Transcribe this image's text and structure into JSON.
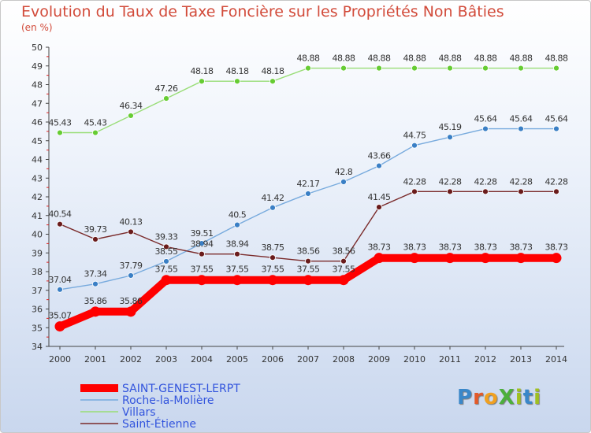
{
  "title": "Evolution du Taux de Taxe Foncière sur les Propriétés Non Bâties",
  "unit_label": "(en %)",
  "logo_text": "ProXiti",
  "chart_data": {
    "type": "line",
    "title": "Evolution du Taux de Taxe Foncière sur les Propriétés Non Bâties",
    "ylabel": "(en %)",
    "xlabel": "",
    "ylim": [
      34,
      50
    ],
    "yticks": [
      "34",
      "35",
      "36",
      "37",
      "38",
      "39",
      "40",
      "41",
      "42",
      "43",
      "44",
      "45",
      "46",
      "47",
      "48",
      "49",
      "50"
    ],
    "categories": [
      "2000",
      "2001",
      "2002",
      "2003",
      "2004",
      "2005",
      "2006",
      "2007",
      "2008",
      "2009",
      "2010",
      "2011",
      "2012",
      "2013",
      "2014"
    ],
    "grid": false,
    "legend_position": "bottom-left",
    "series": [
      {
        "name": "SAINT-GENEST-LERPT",
        "color": "#ff0000",
        "marker_color": "#ff0000",
        "highlight": true,
        "values": [
          35.07,
          35.86,
          35.86,
          37.55,
          37.55,
          37.55,
          37.55,
          37.55,
          37.55,
          38.73,
          38.73,
          38.73,
          38.73,
          38.73,
          38.73
        ],
        "labels": [
          "35.07",
          "35.86",
          "35.86",
          "37.55",
          "37.55",
          "37.55",
          "37.55",
          "37.55",
          "37.55",
          "38.73",
          "38.73",
          "38.73",
          "38.73",
          "38.73",
          "38.73"
        ]
      },
      {
        "name": "Roche-la-Molière",
        "color": "#77aadd",
        "marker_color": "#3a7fc5",
        "highlight": false,
        "values": [
          37.04,
          37.34,
          37.79,
          38.55,
          39.51,
          40.5,
          41.42,
          42.17,
          42.8,
          43.66,
          44.75,
          45.19,
          45.64,
          45.64,
          45.64
        ],
        "labels": [
          "37.04",
          "37.34",
          "37.79",
          "38.55",
          "39.51",
          "40.5",
          "41.42",
          "42.17",
          "42.8",
          "43.66",
          "44.75",
          "45.19",
          "45.64",
          "45.64",
          "45.64"
        ]
      },
      {
        "name": "Villars",
        "color": "#99dd77",
        "marker_color": "#66cc33",
        "highlight": false,
        "values": [
          45.43,
          45.43,
          46.34,
          47.26,
          48.18,
          48.18,
          48.18,
          48.88,
          48.88,
          48.88,
          48.88,
          48.88,
          48.88,
          48.88,
          48.88
        ],
        "labels": [
          "45.43",
          "45.43",
          "46.34",
          "47.26",
          "48.18",
          "48.18",
          "48.18",
          "48.88",
          "48.88",
          "48.88",
          "48.88",
          "48.88",
          "48.88",
          "48.88",
          "48.88"
        ]
      },
      {
        "name": "Saint-Étienne",
        "color": "#7a2a2a",
        "marker_color": "#6a1c1c",
        "highlight": false,
        "values": [
          40.54,
          39.73,
          40.13,
          39.33,
          38.94,
          38.94,
          38.75,
          38.56,
          38.56,
          41.45,
          42.28,
          42.28,
          42.28,
          42.28,
          42.28
        ],
        "labels": [
          "40.54",
          "39.73",
          "40.13",
          "39.33",
          "38.94",
          "38.94",
          "38.75",
          "38.56",
          "38.56",
          "41.45",
          "42.28",
          "42.28",
          "42.28",
          "42.28",
          "42.28"
        ]
      }
    ]
  }
}
